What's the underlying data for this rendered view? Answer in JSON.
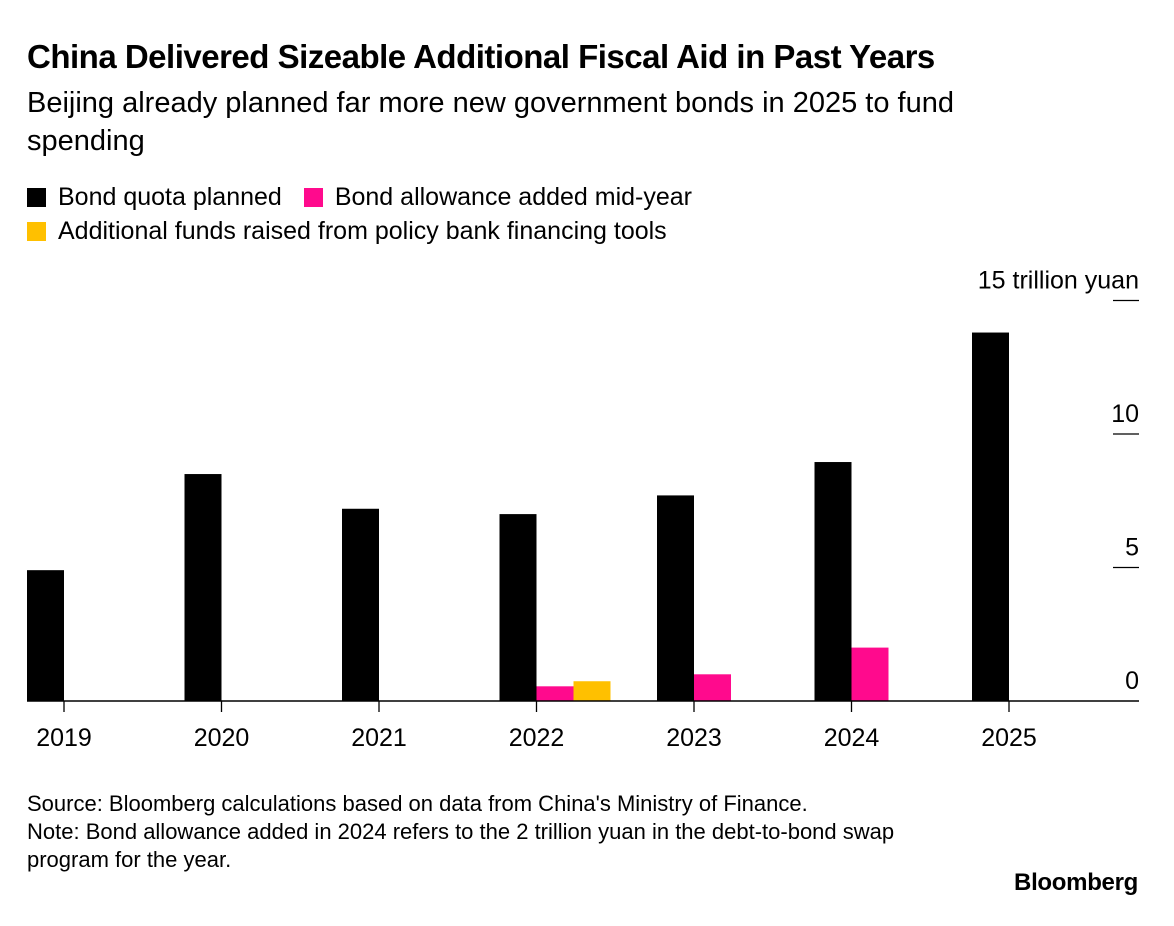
{
  "header": {
    "title": "China Delivered Sizeable Additional Fiscal Aid in Past Years",
    "subtitle": "Beijing already planned far more new government bonds in 2025 to fund spending"
  },
  "chart_data": {
    "type": "bar",
    "categories": [
      "2019",
      "2020",
      "2021",
      "2022",
      "2023",
      "2024",
      "2025"
    ],
    "series": [
      {
        "name": "Bond quota planned",
        "color": "#000000",
        "values": [
          4.9,
          8.5,
          7.2,
          7.0,
          7.7,
          8.95,
          13.8
        ]
      },
      {
        "name": "Bond allowance added mid-year",
        "color": "#ff0a8d",
        "values": [
          0,
          0,
          0,
          0.55,
          1.0,
          2.0,
          0
        ]
      },
      {
        "name": "Additional funds raised from policy bank financing tools",
        "color": "#ffc000",
        "values": [
          0,
          0,
          0,
          0.74,
          0,
          0,
          0
        ]
      }
    ],
    "y_ticks": [
      "0",
      "5",
      "10",
      "15 trillion yuan"
    ],
    "y_tick_values": [
      0,
      5,
      10,
      15
    ],
    "ylim": [
      0,
      15
    ],
    "axis_position": "right",
    "grid": false,
    "legend_position": "top-left"
  },
  "footer": {
    "source": "Source: Bloomberg calculations based on data from China's Ministry of Finance.",
    "note": "Note: Bond allowance added in 2024 refers to the 2 trillion yuan in the debt-to-bond swap program for the year.",
    "brand": "Bloomberg"
  }
}
